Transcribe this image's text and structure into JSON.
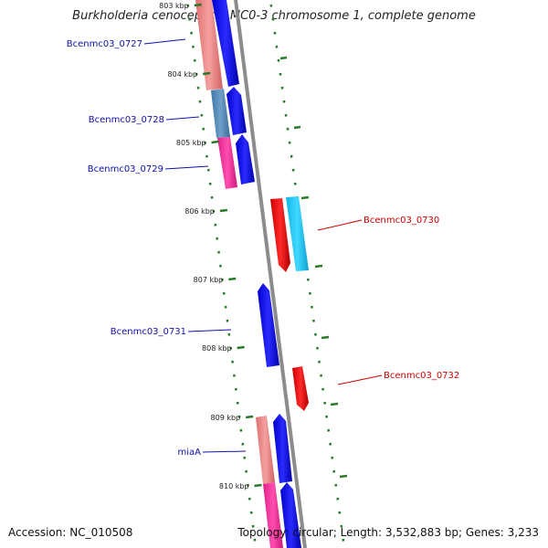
{
  "title": "Burkholderia cenocepacia MC0-3 chromosome 1, complete genome",
  "accession": "Accession: NC_010508",
  "topology": "Topology: circular; Length: 3,532,883 bp; Genes: 3,233",
  "colors": {
    "forward_label": "#1010aa",
    "reverse_label": "#cc0000",
    "backbone": "#8c8c8c",
    "tick": "#2a7a2a"
  },
  "ticks": [
    "803 kbp",
    "804 kbp",
    "805 kbp",
    "806 kbp",
    "807 kbp",
    "808 kbp",
    "809 kbp",
    "810 kbp"
  ],
  "gene_labels": [
    {
      "text": "Bcenmc03_0727",
      "strand": "forward"
    },
    {
      "text": "Bcenmc03_0728",
      "strand": "forward"
    },
    {
      "text": "Bcenmc03_0729",
      "strand": "forward"
    },
    {
      "text": "Bcenmc03_0730",
      "strand": "reverse"
    },
    {
      "text": "Bcenmc03_0731",
      "strand": "forward"
    },
    {
      "text": "Bcenmc03_0732",
      "strand": "reverse"
    },
    {
      "text": "miaA",
      "strand": "forward"
    }
  ]
}
